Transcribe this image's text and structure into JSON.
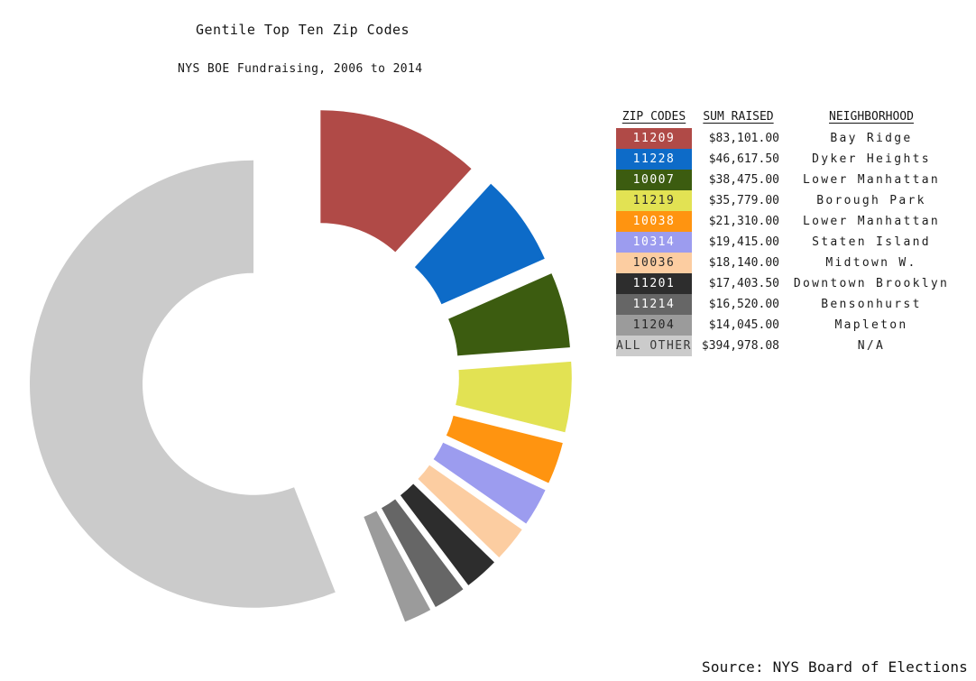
{
  "title": "Gentile Top Ten Zip Codes",
  "subtitle": "NYS BOE Fundraising, 2006 to 2014",
  "source": "Source: NYS Board of Elections",
  "legend": {
    "headers": {
      "zip": "ZIP CODES",
      "sum": "SUM RAISED",
      "neighborhood": "NEIGHBORHOOD"
    }
  },
  "chart_data": {
    "type": "pie",
    "variant": "exploded-donut",
    "title": "Gentile Top Ten Zip Codes",
    "subtitle": "NYS BOE Fundraising, 2006 to 2014",
    "source_note": "Source: NYS Board of Elections",
    "legend_position": "right",
    "start_angle_deg": 0,
    "clockwise": true,
    "categories": [
      "11209",
      "11228",
      "10007",
      "11219",
      "10038",
      "10314",
      "10036",
      "11201",
      "11214",
      "11204",
      "ALL OTHER"
    ],
    "values": [
      83101.0,
      46617.5,
      38475.0,
      35779.0,
      21310.0,
      19415.0,
      18140.0,
      17403.5,
      16520.0,
      14045.0,
      394978.08
    ],
    "sum_labels": [
      "$83,101.00",
      "$46,617.50",
      "$38,475.00",
      "$35,779.00",
      "$21,310.00",
      "$19,415.00",
      "$18,140.00",
      "$17,403.50",
      "$16,520.00",
      "$14,045.00",
      "$394,978.08"
    ],
    "neighborhoods": [
      "Bay Ridge",
      "Dyker Heights",
      "Lower Manhattan",
      "Borough Park",
      "Lower Manhattan",
      "Staten Island",
      "Midtown W.",
      "Downtown Brooklyn",
      "Bensonhurst",
      "Mapleton",
      "N/A"
    ],
    "colors": [
      "#b04a47",
      "#0d6bc8",
      "#3c5c10",
      "#e2e253",
      "#ff9410",
      "#9c9cef",
      "#fccda1",
      "#2d2d2d",
      "#666666",
      "#9b9b9b",
      "#cbcbcb"
    ],
    "label_text_colors": [
      "#ffffff",
      "#ffffff",
      "#ffffff",
      "#2b2b2b",
      "#ffffff",
      "#ffffff",
      "#2b2b2b",
      "#ffffff",
      "#ffffff",
      "#262626",
      "#3a3a3a"
    ]
  }
}
